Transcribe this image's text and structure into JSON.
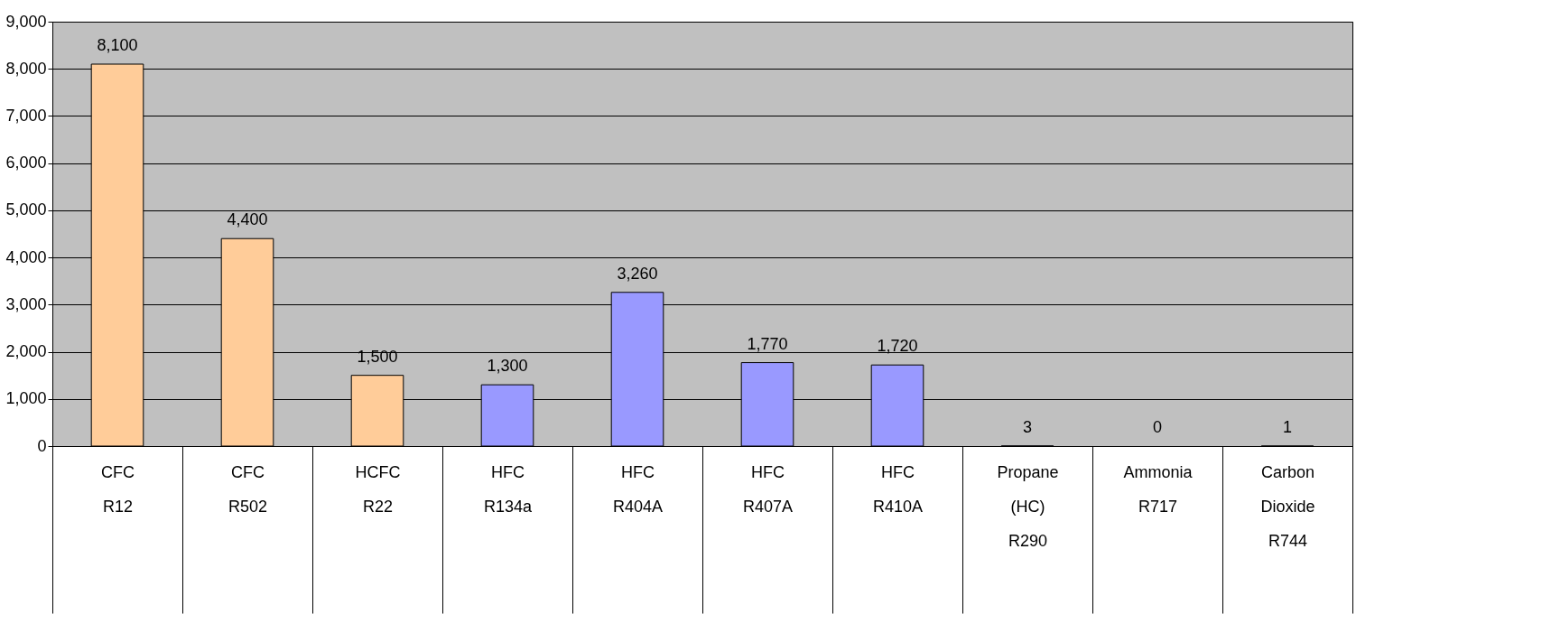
{
  "chart_data": {
    "type": "bar",
    "categories": [
      "CFC\n\n\nR12",
      "CFC\n\n\nR502",
      "HCFC\n\n\nR22",
      "HFC\n\n\nR134a",
      "HFC\n\n\nR404A",
      "HFC\n\n\nR407A",
      "HFC\n\n\nR410A",
      "Propane\n(HC)\n\nR290",
      "Ammonia\n\n\nR717",
      "Carbon\nDioxide\n\nR744"
    ],
    "values": [
      8100,
      4400,
      1500,
      1300,
      3260,
      1770,
      1720,
      3,
      0,
      1
    ],
    "colors": [
      "#ffcc99",
      "#ffcc99",
      "#ffcc99",
      "#9999ff",
      "#9999ff",
      "#9999ff",
      "#9999ff",
      "#9999ff",
      "#9999ff",
      "#9999ff"
    ],
    "value_labels": [
      "8,100",
      "4,400",
      "1,500",
      "1,300",
      "3,260",
      "1,770",
      "1,720",
      "3",
      "0",
      "1"
    ],
    "ylim": [
      0,
      9000
    ],
    "yticks": [
      0,
      {
        "value": 1000,
        "label": "1,000"
      },
      {
        "value": 2000,
        "label": "2,000"
      },
      {
        "value": 3000,
        "label": "3,000"
      },
      {
        "value": 4000,
        "label": "4,000"
      },
      {
        "value": 5000,
        "label": "5,000"
      },
      {
        "value": 6000,
        "label": "6,000"
      },
      {
        "value": 7000,
        "label": "7,000"
      },
      {
        "value": 8000,
        "label": "8,000"
      },
      {
        "value": 9000,
        "label": "9,000"
      }
    ],
    "grid": "y"
  }
}
